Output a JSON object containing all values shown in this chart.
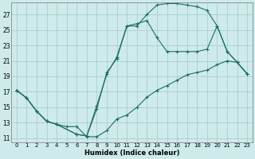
{
  "xlabel": "Humidex (Indice chaleur)",
  "bg_color": "#ceeaea",
  "grid_color": "#aacfcf",
  "line_color": "#1a6e62",
  "xlim": [
    -0.5,
    23.5
  ],
  "ylim": [
    10.5,
    28.5
  ],
  "xtick_labels": [
    "0",
    "1",
    "2",
    "3",
    "4",
    "5",
    "6",
    "7",
    "8",
    "9",
    "10",
    "11",
    "12",
    "13",
    "14",
    "15",
    "16",
    "17",
    "18",
    "19",
    "20",
    "21",
    "22",
    "23"
  ],
  "ytick_values": [
    11,
    13,
    15,
    17,
    19,
    21,
    23,
    25,
    27
  ],
  "line1_x": [
    0,
    1,
    2,
    3,
    4,
    6,
    7,
    8,
    9,
    10,
    11,
    12,
    13,
    14,
    15,
    16,
    17,
    18,
    19,
    20,
    21,
    22,
    23
  ],
  "line1_y": [
    17.2,
    16.2,
    14.5,
    13.2,
    12.8,
    11.5,
    11.3,
    15.2,
    19.3,
    21.5,
    25.5,
    25.5,
    27.0,
    28.2,
    28.4,
    28.4,
    28.2,
    28.0,
    27.5,
    25.5,
    22.2,
    20.8,
    19.3
  ],
  "line2_x": [
    0,
    1,
    2,
    3,
    4,
    6,
    7,
    8,
    9,
    10,
    11,
    12,
    13,
    14,
    15,
    16,
    17,
    18,
    19,
    20,
    21,
    22,
    23
  ],
  "line2_y": [
    17.2,
    16.2,
    14.5,
    13.2,
    12.8,
    11.5,
    11.3,
    14.8,
    19.5,
    21.3,
    25.5,
    25.8,
    26.2,
    24.0,
    22.2,
    22.2,
    22.2,
    22.2,
    22.5,
    25.5,
    22.2,
    20.8,
    19.3
  ],
  "line3_x": [
    0,
    1,
    2,
    3,
    4,
    5,
    6,
    7,
    8,
    9,
    10,
    11,
    12,
    13,
    14,
    15,
    16,
    17,
    18,
    19,
    20,
    21,
    22,
    23
  ],
  "line3_y": [
    17.2,
    16.2,
    14.5,
    13.2,
    12.8,
    12.5,
    12.5,
    11.2,
    11.2,
    12.0,
    13.5,
    14.0,
    15.0,
    16.3,
    17.2,
    17.8,
    18.5,
    19.2,
    19.5,
    19.8,
    20.5,
    21.0,
    20.8,
    19.3
  ],
  "marker": "+",
  "markersize": 3,
  "linewidth": 0.8
}
